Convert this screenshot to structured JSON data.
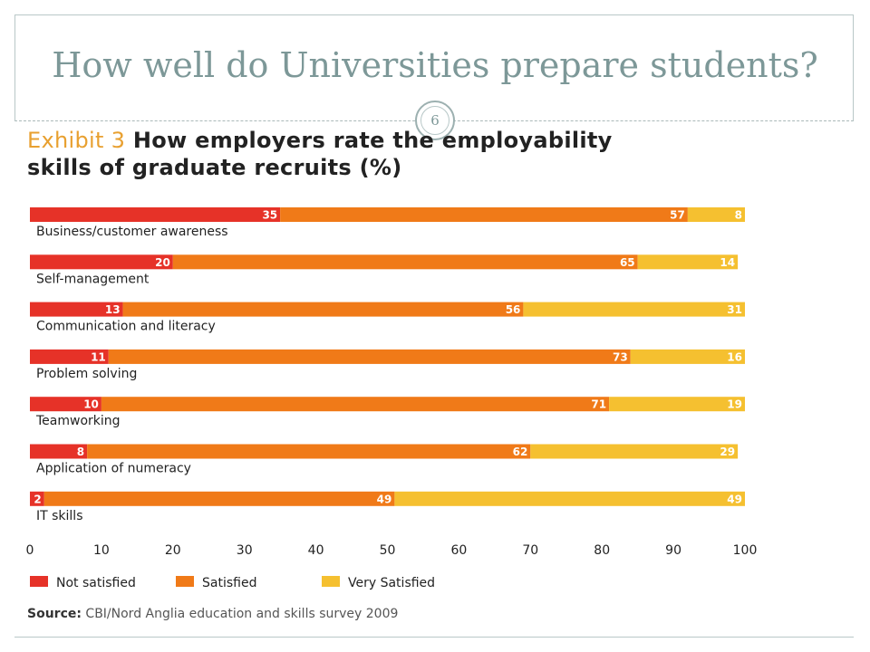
{
  "slide": {
    "title": "How well do Universities prepare students?",
    "page_number": "6"
  },
  "exhibit": {
    "label": "Exhibit 3",
    "title_line1": "How employers rate the employability",
    "title_line2": "skills of graduate recruits (%)"
  },
  "source": {
    "label": "Source:",
    "text": "CBI/Nord Anglia education and skills survey 2009"
  },
  "colors": {
    "not_satisfied": "#e63228",
    "satisfied": "#f07a18",
    "very_satisfied": "#f5c030"
  },
  "chart_data": {
    "type": "bar",
    "orientation": "horizontal",
    "stacked": true,
    "categories": [
      "Business/customer awareness",
      "Self-management",
      "Communication and literacy",
      "Problem solving",
      "Teamworking",
      "Application of numeracy",
      "IT skills"
    ],
    "series": [
      {
        "name": "Not satisfied",
        "values": [
          35,
          20,
          13,
          11,
          10,
          8,
          2
        ]
      },
      {
        "name": "Satisfied",
        "values": [
          57,
          65,
          56,
          73,
          71,
          62,
          49
        ]
      },
      {
        "name": "Very Satisfied",
        "values": [
          8,
          14,
          31,
          16,
          19,
          29,
          49
        ]
      }
    ],
    "xlim": [
      0,
      100
    ],
    "xticks": [
      "0",
      "10",
      "20",
      "30",
      "40",
      "50",
      "60",
      "70",
      "80",
      "90",
      "100"
    ],
    "grid": false,
    "legend_position": "bottom-left"
  }
}
